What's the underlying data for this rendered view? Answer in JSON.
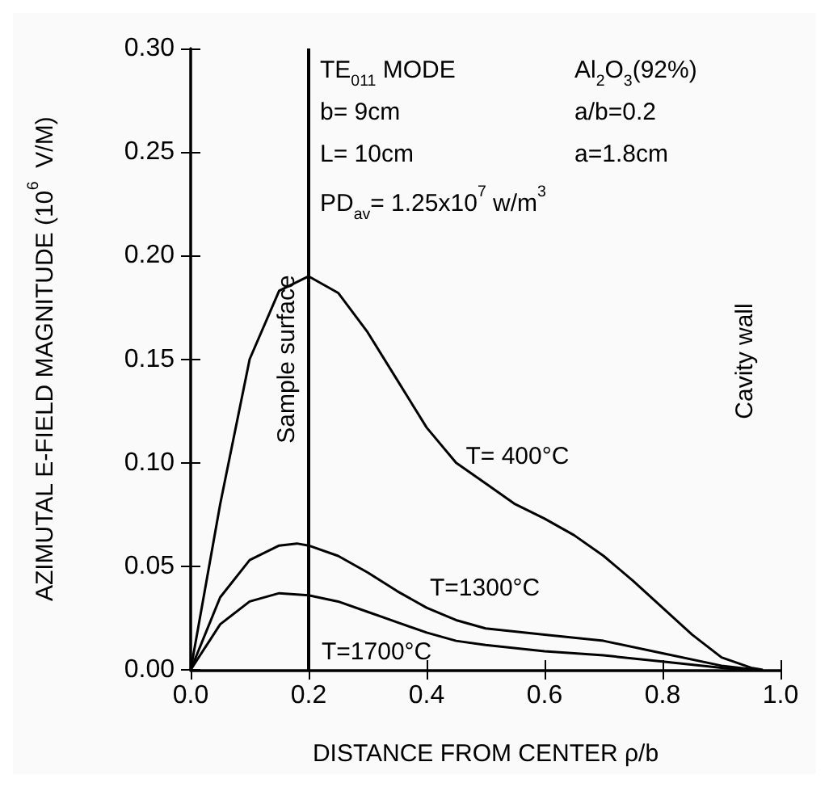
{
  "chart_data": {
    "type": "line",
    "xlabel": "DISTANCE FROM CENTER ρ/b",
    "ylabel": "AZIMUTAL E-FIELD MAGNITUDE (10$^{6}$  V/M)",
    "xlim": [
      0,
      1
    ],
    "xticks": [
      "0.0",
      0.2,
      0.4,
      0.6,
      0.8,
      "1.0"
    ],
    "ylim": [
      0,
      0.3
    ],
    "yticks": [
      "0.00",
      0.05,
      "0.10",
      0.15,
      "0.20",
      0.25,
      "0.30"
    ],
    "grid": false,
    "marker": "none",
    "line_style": "solid",
    "series": [
      {
        "name": "T= 400°C",
        "color": "#000000",
        "x": [
          0,
          0.05,
          0.1,
          0.15,
          0.2,
          0.25,
          0.3,
          0.35,
          0.4,
          0.45,
          0.5,
          0.55,
          0.6,
          0.65,
          0.7,
          0.75,
          0.8,
          0.85,
          0.9,
          0.95,
          0.97
        ],
        "values": [
          0,
          0.08,
          0.15,
          0.183,
          0.19,
          0.182,
          0.163,
          0.14,
          0.117,
          0.1,
          0.09,
          0.08,
          0.073,
          0.065,
          0.055,
          0.043,
          0.03,
          0.017,
          0.006,
          0.001,
          0
        ]
      },
      {
        "name": "T=1300°C",
        "color": "#000000",
        "x": [
          0,
          0.05,
          0.1,
          0.15,
          0.18,
          0.2,
          0.25,
          0.3,
          0.35,
          0.4,
          0.45,
          0.5,
          0.6,
          0.7,
          0.8,
          0.9,
          0.96
        ],
        "values": [
          0,
          0.035,
          0.053,
          0.06,
          0.061,
          0.06,
          0.055,
          0.047,
          0.038,
          0.03,
          0.024,
          0.02,
          0.017,
          0.014,
          0.008,
          0.002,
          0
        ]
      },
      {
        "name": "T=1700°C",
        "color": "#000000",
        "x": [
          0,
          0.05,
          0.1,
          0.15,
          0.2,
          0.25,
          0.3,
          0.35,
          0.4,
          0.45,
          0.5,
          0.6,
          0.7,
          0.8,
          0.9,
          0.94
        ],
        "values": [
          0,
          0.022,
          0.033,
          0.037,
          0.036,
          0.033,
          0.028,
          0.023,
          0.018,
          0.014,
          0.012,
          0.009,
          0.007,
          0.004,
          0.001,
          0
        ]
      }
    ],
    "ref_lines": [
      {
        "axis": "x",
        "value": 0.2,
        "label": "Sample surface",
        "color": "#000000"
      }
    ],
    "annotations": [
      "TE$_{011}$ MODE",
      "Al$_{2}$O$_{3}$(92%)",
      "b= 9cm",
      "a/b=0.2",
      "L= 10cm",
      "a=1.8cm",
      "PD$_{av}$= 1.25x10$^{7}$ w/m$^{3}$",
      "Cavity wall"
    ]
  }
}
